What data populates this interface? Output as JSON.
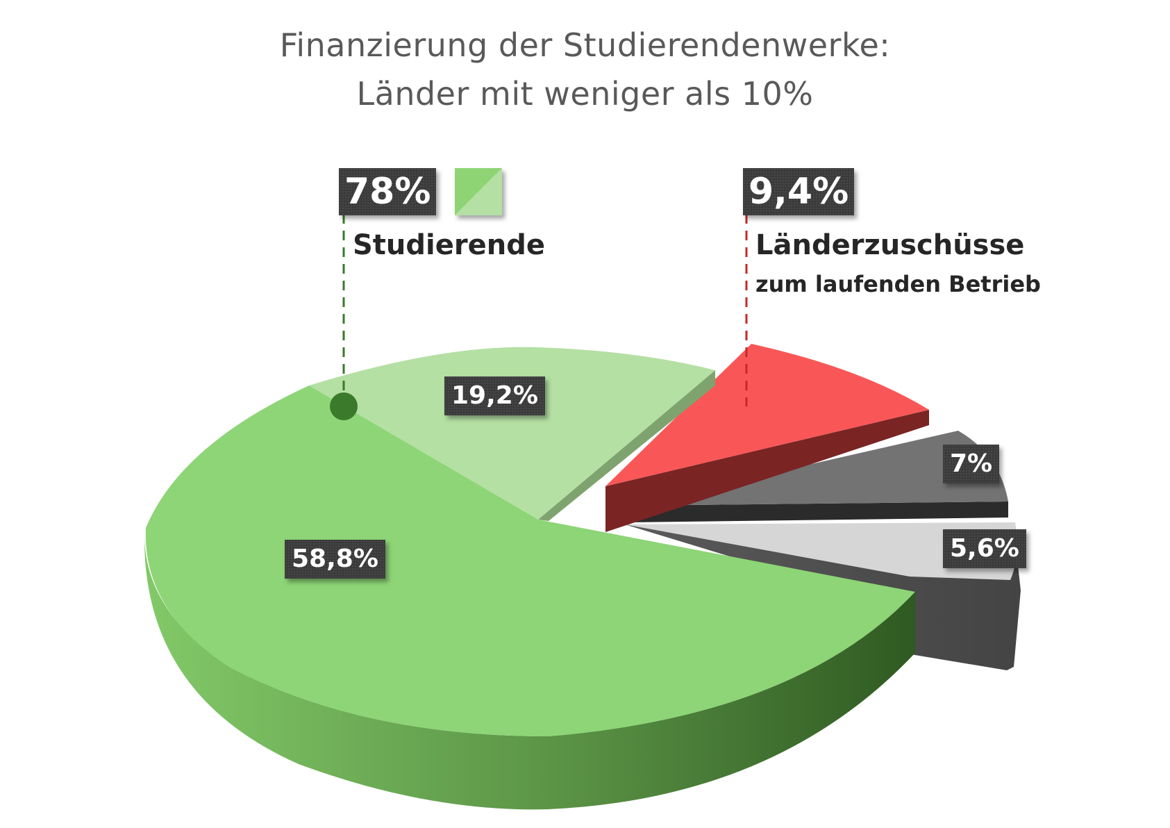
{
  "chart_data": {
    "type": "pie",
    "title_line1": "Finanzierung der Studierendenwerke:",
    "title_line2": "Länder mit weniger als 10%",
    "slices": [
      {
        "value_label": "58,8%",
        "value": 58.8,
        "color": "#8dd576"
      },
      {
        "value_label": "19,2%",
        "value": 19.2,
        "color": "#b4e0a3"
      },
      {
        "value_label": "9,4%",
        "value": 9.4,
        "color": "#f95a5a"
      },
      {
        "value_label": "7%",
        "value": 7.0,
        "color": "#707070"
      },
      {
        "value_label": "5,6%",
        "value": 5.6,
        "color": "#d2d2d2"
      }
    ],
    "groups": [
      {
        "value_label": "78%",
        "label": "Studierende",
        "color": "#8dd576",
        "callout_color": "#3a7a2a"
      },
      {
        "value_label": "9,4%",
        "label": "Länderzuschüsse",
        "sublabel": "zum laufenden Betrieb",
        "callout_color": "#c62828"
      }
    ]
  }
}
